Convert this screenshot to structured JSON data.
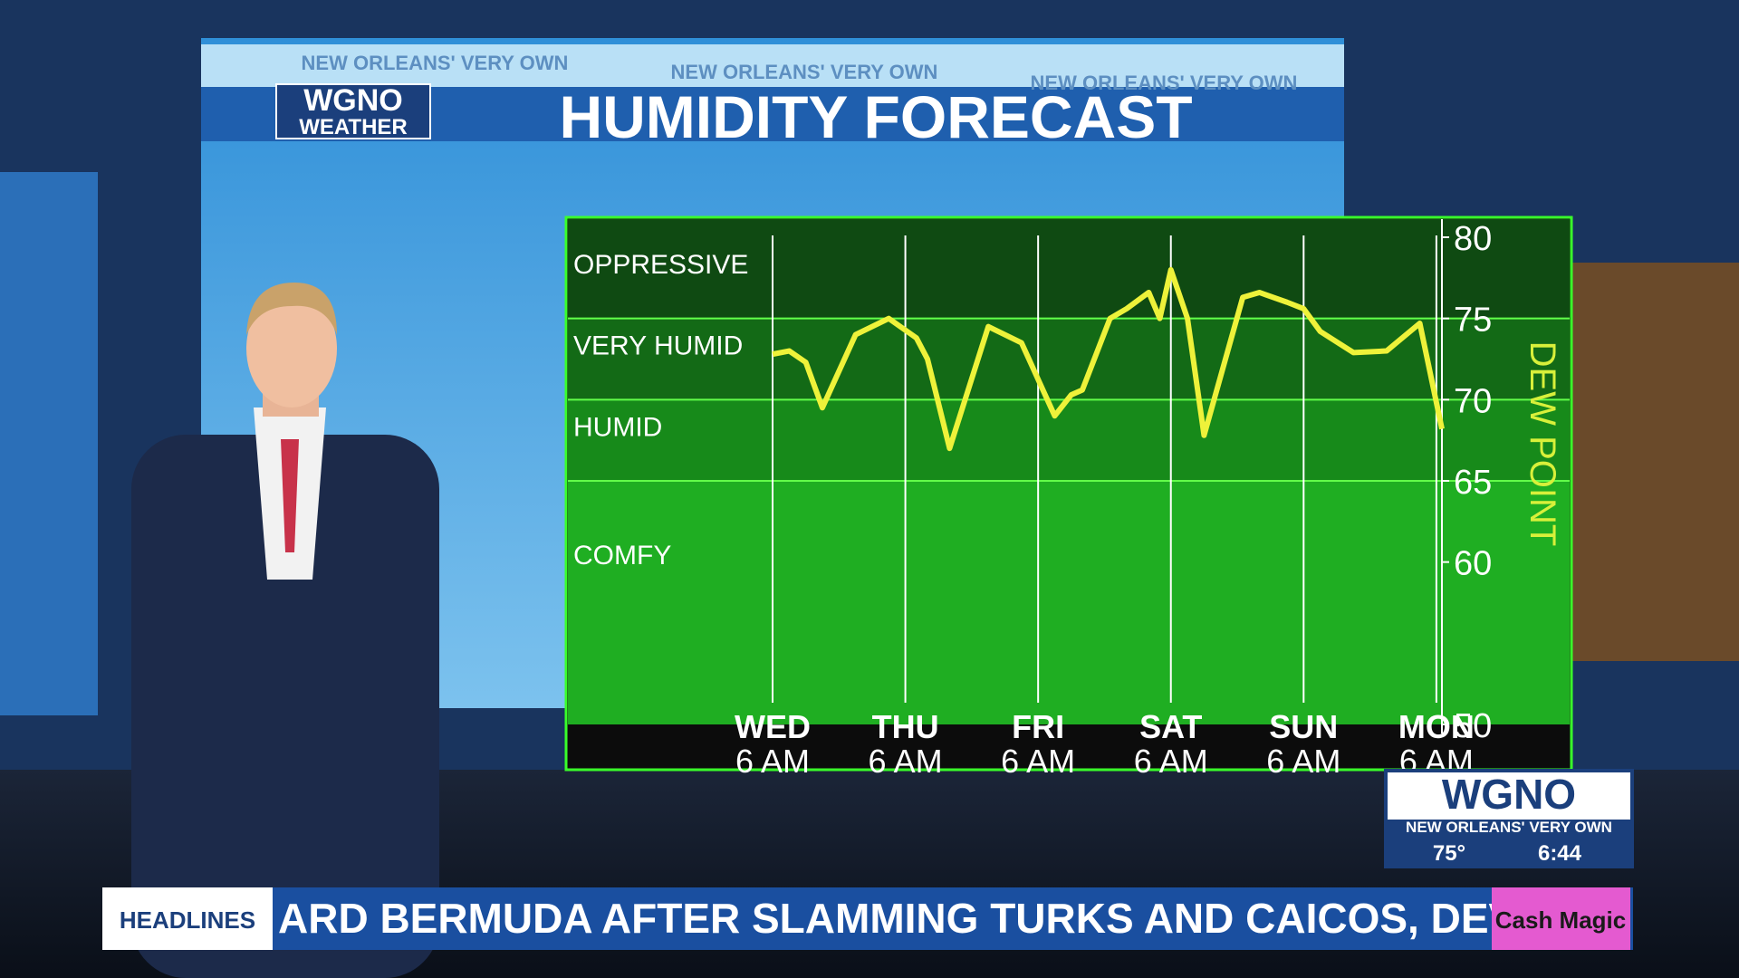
{
  "broadcast": {
    "tagline_1": "NEW ORLEANS' VERY OWN",
    "tagline_2": "NEW ORLEANS' VERY OWN",
    "tagline_3": "NEW ORLEANS' VERY OWN",
    "logo": "WGNO",
    "logo_sub": "WEATHER",
    "bug_logo": "WGNO",
    "bug_tagline": "NEW ORLEANS' VERY OWN",
    "temperature": "75°",
    "time": "6:44",
    "ticker_label": "HEADLINES",
    "ticker_text": "ARD BERMUDA AFTER SLAMMING TURKS AND CAICOS, DEV",
    "sponsor": "Cash Magic"
  },
  "chart_data": {
    "type": "line",
    "title": "HUMIDITY FORECAST",
    "y_label": "DEW POINT",
    "x": [
      0,
      3,
      6,
      9,
      15,
      21,
      26,
      28,
      32,
      39,
      45,
      51,
      54,
      56,
      61,
      64,
      68,
      70,
      72,
      75,
      78,
      85,
      88,
      93,
      96,
      99,
      105,
      111,
      117,
      121
    ],
    "series": [
      {
        "color": "#eef23a",
        "values": [
          72.8,
          73,
          72.3,
          69.5,
          74,
          75,
          73.8,
          72.5,
          67,
          74.5,
          73.5,
          69,
          70.3,
          70.6,
          75,
          75.6,
          76.6,
          75,
          78,
          75,
          67.8,
          76.3,
          76.6,
          76,
          75.6,
          74.2,
          72.9,
          73,
          74.7,
          68.2
        ]
      }
    ],
    "xlim": [
      0,
      121
    ],
    "xticks": [
      {
        "value": 0,
        "label": "WED\n6 AM"
      },
      {
        "value": 24,
        "label": "THU\n6 AM"
      },
      {
        "value": 48,
        "label": "FRI\n6 AM"
      },
      {
        "value": 72,
        "label": "SAT\n6 AM"
      },
      {
        "value": 96,
        "label": "SUN\n6 AM"
      },
      {
        "value": 120,
        "label": "MON\n6 AM"
      }
    ],
    "ylim": [
      50,
      80
    ],
    "yticks": [
      80,
      75,
      70,
      65,
      60,
      50
    ],
    "zones": [
      {
        "label": "OPPRESSIVE",
        "from": 75,
        "to": 80,
        "color": "#0f4a12"
      },
      {
        "label": "VERY HUMID",
        "from": 70,
        "to": 75,
        "color": "#136a16"
      },
      {
        "label": "HUMID",
        "from": 65,
        "to": 70,
        "color": "#178a1a"
      },
      {
        "label": "COMFY",
        "from": 50,
        "to": 65,
        "color": "#1fae22"
      }
    ],
    "grid": true
  }
}
